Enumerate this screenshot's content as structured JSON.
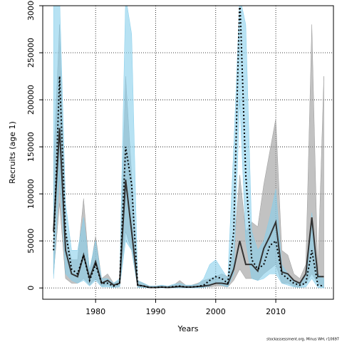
{
  "chart_data": {
    "type": "band-line",
    "xlabel": "Years",
    "ylabel": "Recruits (age 1)",
    "footnote": "stockassessment.org, Minus WH, r10697",
    "x": [
      1973,
      1974,
      1975,
      1976,
      1977,
      1978,
      1979,
      1980,
      1981,
      1982,
      1983,
      1984,
      1985,
      1986,
      1987,
      1988,
      1989,
      1990,
      1991,
      1992,
      1993,
      1994,
      1995,
      1996,
      1997,
      1998,
      1999,
      2000,
      2001,
      2002,
      2003,
      2004,
      2005,
      2006,
      2007,
      2008,
      2009,
      2010,
      2011,
      2012,
      2013,
      2014,
      2015,
      2016,
      2017,
      2018
    ],
    "xlim": [
      1971.2,
      2019.6
    ],
    "xticks": [
      1980,
      1990,
      2000,
      2010
    ],
    "ylim": [
      -12000,
      300000
    ],
    "yticks": [
      0,
      50000,
      100000,
      150000,
      200000,
      250000,
      300000
    ],
    "grid": true,
    "series": [
      {
        "color": "#333333",
        "band_color": "#999999",
        "line_style": "solid",
        "values": [
          60000,
          170000,
          40000,
          15000,
          12000,
          35000,
          10000,
          28000,
          5000,
          8000,
          3000,
          5000,
          115000,
          60000,
          3000,
          2000,
          500,
          500,
          1000,
          500,
          1000,
          1500,
          1000,
          1000,
          1500,
          2000,
          3000,
          5000,
          5000,
          4000,
          20000,
          50000,
          25000,
          25000,
          18000,
          42000,
          55000,
          70000,
          17000,
          15000,
          8000,
          5000,
          15000,
          75000,
          12000,
          12000
        ],
        "lower": [
          15000,
          90000,
          10000,
          5000,
          5000,
          10000,
          3000,
          10000,
          2000,
          3000,
          1000,
          2000,
          60000,
          40000,
          1000,
          500,
          0,
          0,
          0,
          0,
          0,
          500,
          0,
          0,
          500,
          1000,
          1000,
          2000,
          2000,
          1000,
          8000,
          20000,
          10000,
          10000,
          8000,
          15000,
          20000,
          25000,
          5000,
          5000,
          2000,
          1000,
          5000,
          15000,
          5000,
          0
        ],
        "upper": [
          130000,
          280000,
          60000,
          30000,
          30000,
          95000,
          15000,
          55000,
          10000,
          15000,
          5000,
          8000,
          225000,
          120000,
          8000,
          5000,
          2000,
          2000,
          3000,
          2000,
          3000,
          8000,
          3000,
          3000,
          5000,
          8000,
          10000,
          12000,
          15000,
          12000,
          40000,
          120000,
          60000,
          70000,
          65000,
          110000,
          145000,
          180000,
          40000,
          35000,
          15000,
          10000,
          25000,
          280000,
          15000,
          225000
        ]
      },
      {
        "color": "#000000",
        "band_color": "#87ceeb",
        "line_style": "dotted",
        "values": [
          40000,
          225000,
          60000,
          20000,
          15000,
          35000,
          8000,
          25000,
          5000,
          5000,
          2000,
          5000,
          150000,
          110000,
          3000,
          2000,
          500,
          500,
          1000,
          500,
          1500,
          2000,
          1000,
          1000,
          1500,
          3000,
          8000,
          12000,
          10000,
          5000,
          60000,
          310000,
          120000,
          30000,
          20000,
          25000,
          45000,
          50000,
          15000,
          10000,
          5000,
          3000,
          5000,
          40000,
          3000,
          2000
        ],
        "lower": [
          10000,
          120000,
          15000,
          8000,
          5000,
          8000,
          2000,
          8000,
          1000,
          1000,
          500,
          1000,
          50000,
          40000,
          500,
          500,
          0,
          0,
          0,
          0,
          0,
          0,
          0,
          0,
          0,
          500,
          2000,
          5000,
          3000,
          1000,
          15000,
          200000,
          50000,
          10000,
          8000,
          10000,
          15000,
          15000,
          5000,
          3000,
          1000,
          500,
          1000,
          10000,
          500,
          0
        ],
        "upper": [
          310000,
          310000,
          90000,
          40000,
          40000,
          75000,
          20000,
          50000,
          10000,
          10000,
          5000,
          10000,
          310000,
          270000,
          8000,
          5000,
          2000,
          2000,
          3000,
          2000,
          4000,
          5000,
          3000,
          3000,
          4000,
          10000,
          25000,
          30000,
          20000,
          10000,
          150000,
          310000,
          280000,
          60000,
          40000,
          50000,
          75000,
          105000,
          25000,
          15000,
          8000,
          5000,
          15000,
          80000,
          15000,
          10000
        ]
      }
    ]
  }
}
